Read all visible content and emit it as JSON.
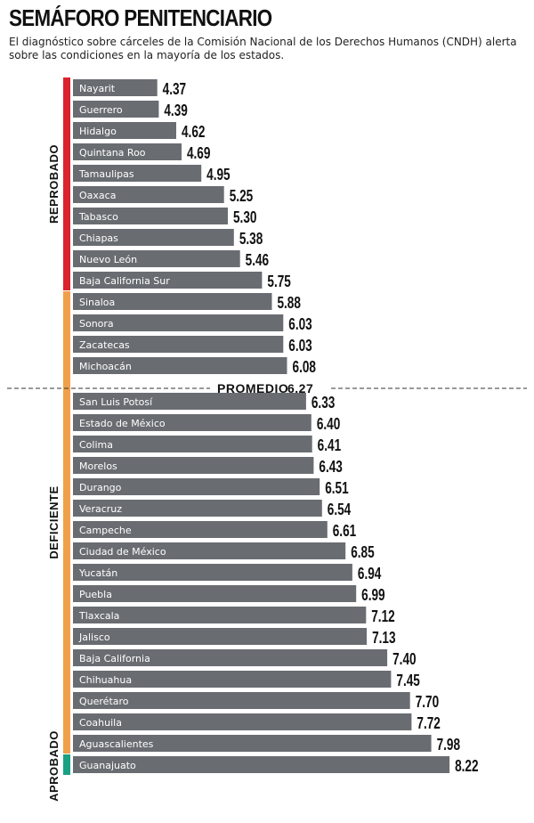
{
  "header": {
    "title": "SEMÁFORO PENITENCIARIO",
    "subtitle": "El diagnóstico sobre cárceles de la Comisión Nacional de los Derechos Humanos (CNDH) alerta sobre las condiciones en la mayoría de los estados."
  },
  "chart_data": {
    "type": "bar",
    "orientation": "horizontal",
    "title": "SEMÁFORO PENITENCIARIO",
    "categories": [
      "Nayarit",
      "Guerrero",
      "Hidalgo",
      "Quintana Roo",
      "Tamaulipas",
      "Oaxaca",
      "Tabasco",
      "Chiapas",
      "Nuevo León",
      "Baja California Sur",
      "Sinaloa",
      "Sonora",
      "Zacatecas",
      "Michoacán",
      "San Luis Potosí",
      "Estado de México",
      "Colima",
      "Morelos",
      "Durango",
      "Veracruz",
      "Campeche",
      "Ciudad de México",
      "Yucatán",
      "Puebla",
      "Tlaxcala",
      "Jalisco",
      "Baja California",
      "Chihuahua",
      "Querétaro",
      "Coahuila",
      "Aguascalientes",
      "Guanajuato"
    ],
    "values": [
      4.37,
      4.39,
      4.62,
      4.69,
      4.95,
      5.25,
      5.3,
      5.38,
      5.46,
      5.75,
      5.88,
      6.03,
      6.03,
      6.08,
      6.33,
      6.4,
      6.41,
      6.43,
      6.51,
      6.54,
      6.61,
      6.85,
      6.94,
      6.99,
      7.12,
      7.13,
      7.4,
      7.45,
      7.7,
      7.72,
      7.98,
      8.22
    ],
    "value_labels": [
      "4.37",
      "4.39",
      "4.62",
      "4.69",
      "4.95",
      "5.25",
      "5.30",
      "5.38",
      "5.46",
      "5.75",
      "5.88",
      "6.03",
      "6.03",
      "6.08",
      "6.33",
      "6.40",
      "6.41",
      "6.43",
      "6.51",
      "6.54",
      "6.61",
      "6.85",
      "6.94",
      "6.99",
      "7.12",
      "7.13",
      "7.40",
      "7.45",
      "7.70",
      "7.72",
      "7.98",
      "8.22"
    ],
    "groups": [
      {
        "label": "REPROBADO",
        "color": "#d9232e",
        "count": 10
      },
      {
        "label": "DEFICIENTE",
        "color": "#f0a04b",
        "count": 21
      },
      {
        "label": "APROBADO",
        "color": "#1aa083",
        "count": 1
      }
    ],
    "average": {
      "label": "PROMEDIO",
      "value": 6.27,
      "value_label": "6.27"
    },
    "bar_color": "#696d72"
  }
}
